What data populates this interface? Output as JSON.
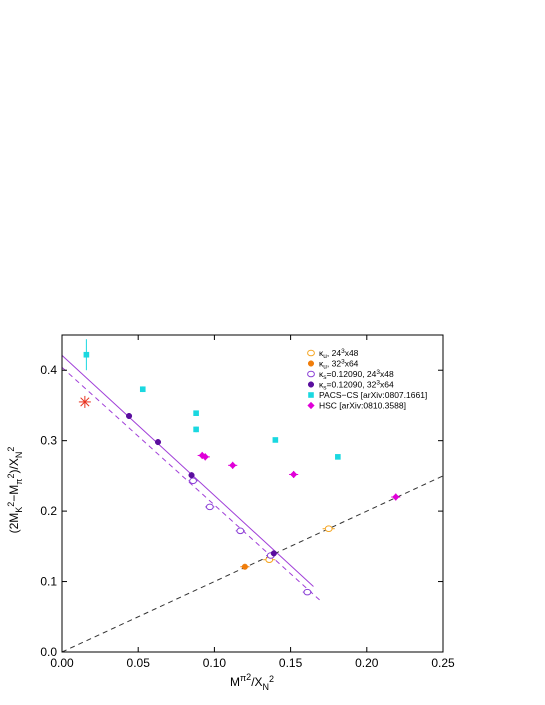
{
  "chart_data": {
    "type": "scatter",
    "xlabel": "Mπ²/X_N²",
    "ylabel": "(2MK²−Mπ²)/X_N²",
    "xlim": [
      0.0,
      0.25
    ],
    "ylim": [
      0.0,
      0.45
    ],
    "x_ticks": [
      0.0,
      0.05,
      0.1,
      0.15,
      0.2,
      0.25
    ],
    "y_ticks": [
      0.0,
      0.1,
      0.2,
      0.3,
      0.4
    ],
    "x_tick_labels": [
      "0.00",
      "0.05",
      "0.10",
      "0.15",
      "0.20",
      "0.25"
    ],
    "y_tick_labels": [
      "0.0",
      "0.1",
      "0.2",
      "0.3",
      "0.4"
    ],
    "legend_position": "top-right",
    "legend": [
      {
        "pre": "κ",
        "sub": "u",
        "post": ", 24",
        "sup": "3",
        "tail": "x48",
        "marker": "open-circle",
        "color": "#f5a623"
      },
      {
        "pre": "κ",
        "sub": "u",
        "post": ", 32",
        "sup": "3",
        "tail": "x64",
        "marker": "filled-circle",
        "color": "#f07d0a"
      },
      {
        "pre": "κ",
        "sub": "s",
        "post": "=0.12090, 24",
        "sup": "3",
        "tail": "x48",
        "marker": "open-circle",
        "color": "#8a3fd6"
      },
      {
        "pre": "κ",
        "sub": "s",
        "post": "=0.12090, 32",
        "sup": "3",
        "tail": "x64",
        "marker": "filled-circle",
        "color": "#5a0e9e"
      },
      {
        "pre": "PACS−CS [arXiv:0807.1661]",
        "sub": "",
        "post": "",
        "sup": "",
        "tail": "",
        "marker": "filled-square",
        "color": "#1ad8e0"
      },
      {
        "pre": "HSC [arXiv:0810.3588]",
        "sub": "",
        "post": "",
        "sup": "",
        "tail": "",
        "marker": "filled-diamond",
        "color": "#e000d8"
      }
    ],
    "series": [
      {
        "points": [
          {
            "x": 0.136,
            "y": 0.131
          },
          {
            "x": 0.175,
            "y": 0.175
          }
        ],
        "xerr": 0.004,
        "yerr": 0.004,
        "marker": "open-circle",
        "color": "#f5a623"
      },
      {
        "points": [
          {
            "x": 0.12,
            "y": 0.121
          }
        ],
        "xerr": 0.003,
        "yerr": 0.003,
        "marker": "filled-circle",
        "color": "#f07d0a"
      },
      {
        "points": [
          {
            "x": 0.086,
            "y": 0.243
          },
          {
            "x": 0.097,
            "y": 0.206
          },
          {
            "x": 0.117,
            "y": 0.172
          },
          {
            "x": 0.137,
            "y": 0.137
          },
          {
            "x": 0.161,
            "y": 0.085
          }
        ],
        "xerr": 0.003,
        "yerr": 0.004,
        "marker": "open-circle",
        "color": "#8a3fd6"
      },
      {
        "points": [
          {
            "x": 0.044,
            "y": 0.335
          },
          {
            "x": 0.063,
            "y": 0.298
          },
          {
            "x": 0.085,
            "y": 0.251
          },
          {
            "x": 0.139,
            "y": 0.14
          }
        ],
        "xerr": 0.001,
        "yerr": 0.004,
        "marker": "filled-circle",
        "color": "#5a0e9e"
      },
      {
        "points": [
          {
            "x": 0.016,
            "y": 0.422,
            "yerr": 0.022
          },
          {
            "x": 0.053,
            "y": 0.373,
            "yerr": 0.004
          },
          {
            "x": 0.088,
            "y": 0.339,
            "yerr": 0.003
          },
          {
            "x": 0.088,
            "y": 0.316,
            "yerr": 0.004
          },
          {
            "x": 0.14,
            "y": 0.301,
            "yerr": 0.003
          },
          {
            "x": 0.181,
            "y": 0.277,
            "yerr": 0.002
          }
        ],
        "xerr": 0.0,
        "marker": "filled-square",
        "color": "#1ad8e0"
      },
      {
        "points": [
          {
            "x": 0.092,
            "y": 0.279
          },
          {
            "x": 0.094,
            "y": 0.277
          },
          {
            "x": 0.112,
            "y": 0.265
          },
          {
            "x": 0.152,
            "y": 0.252
          },
          {
            "x": 0.219,
            "y": 0.22
          }
        ],
        "xerr": 0.003,
        "yerr": 0.005,
        "marker": "filled-diamond",
        "color": "#e000d8"
      }
    ],
    "physical_point": {
      "x": 0.015,
      "y": 0.355,
      "marker": "asterisk",
      "color": "#e8321e"
    },
    "lines": [
      {
        "from": [
          0.0,
          0.421
        ],
        "to": [
          0.165,
          0.093
        ],
        "style": "solid",
        "color": "#a03fd8"
      },
      {
        "from": [
          0.0,
          0.404
        ],
        "to": [
          0.17,
          0.072
        ],
        "style": "dashed",
        "color": "#a03fd8"
      },
      {
        "from": [
          0.0,
          0.0
        ],
        "to": [
          0.25,
          0.25
        ],
        "style": "dashed",
        "color": "#333333"
      }
    ]
  }
}
